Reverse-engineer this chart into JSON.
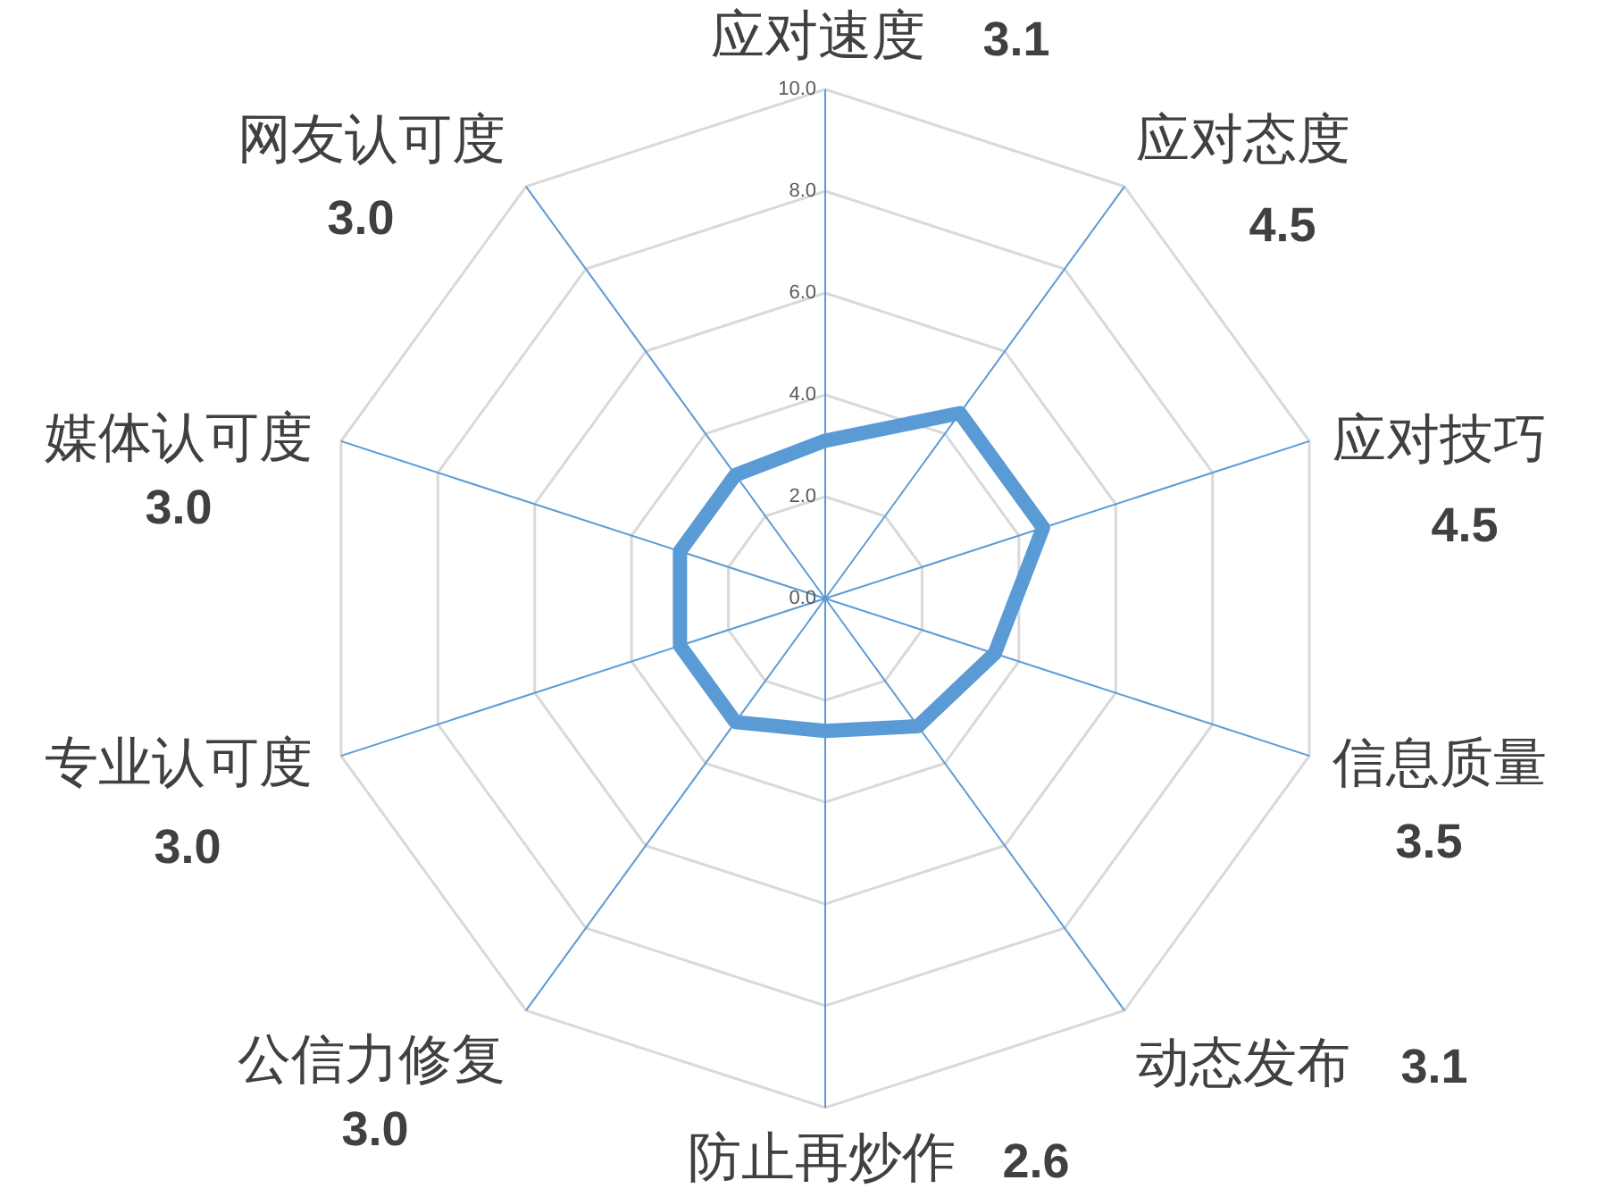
{
  "chart_data": {
    "type": "radar",
    "categories": [
      "应对速度 3.1",
      "应对态度 4.5",
      "应对技巧 4.5",
      "信息质量 3.5",
      "动态发布 3.1",
      "防止再炒作 2.6",
      "公信力修复 3.0",
      "专业认可度 3.0",
      "媒体认可度 3.0",
      "网友认可度 3.0"
    ],
    "series": [
      {
        "color": "#5b9bd5",
        "values": [
          3.1,
          4.5,
          4.5,
          3.5,
          3.1,
          2.6,
          3.0,
          3.0,
          3.0,
          3.0
        ]
      }
    ],
    "ylim": [
      0,
      10
    ],
    "yticks": [
      {
        "value": 0,
        "label": "0.0"
      },
      {
        "value": 2,
        "label": "2.0"
      },
      {
        "value": 4,
        "label": "4.0"
      },
      {
        "value": 6,
        "label": "6.0"
      },
      {
        "value": 8,
        "label": "8.0"
      },
      {
        "value": 10,
        "label": "10.0"
      }
    ],
    "grid": true
  }
}
